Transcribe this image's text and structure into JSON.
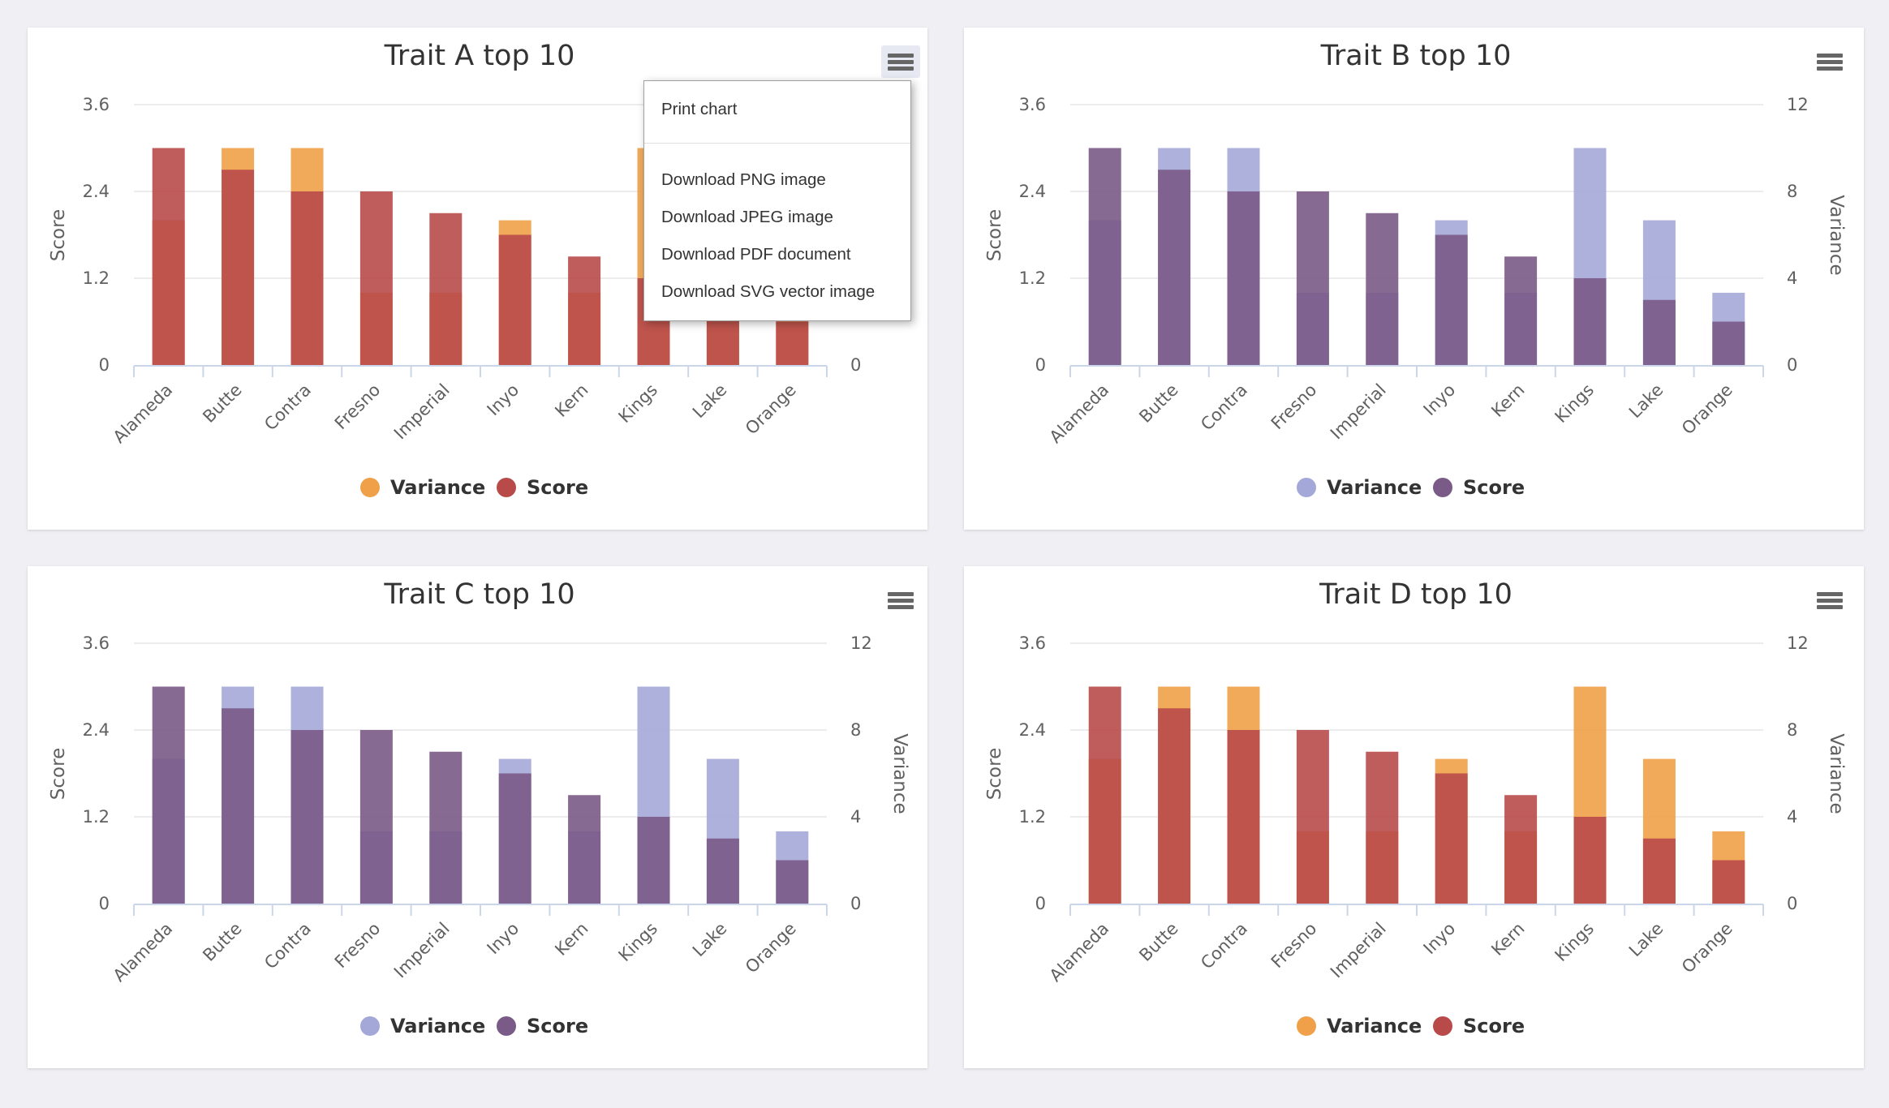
{
  "export_menu": {
    "items": [
      "Print chart",
      "Download PNG image",
      "Download JPEG image",
      "Download PDF document",
      "Download SVG vector image"
    ]
  },
  "chart_data": [
    {
      "type": "bar",
      "title": "Trait A top 10",
      "categories": [
        "Alameda",
        "Butte",
        "Contra",
        "Fresno",
        "Imperial",
        "Inyo",
        "Kern",
        "Kings",
        "Lake",
        "Orange"
      ],
      "ylabel": "Score",
      "y2label": "",
      "ylim": [
        0,
        3.6
      ],
      "y2lim": [
        0,
        12
      ],
      "yticks": [
        "0",
        "1.2",
        "2.4",
        "3.6"
      ],
      "y2ticks": [
        "0",
        "",
        "",
        ""
      ],
      "legend": "bottom-center",
      "grid": true,
      "series": [
        {
          "name": "Variance",
          "axis": "right",
          "color": "#f0a048",
          "values": [
            6.67,
            10,
            10,
            3.33,
            3.33,
            6.67,
            3.33,
            10,
            6.67,
            3.33
          ]
        },
        {
          "name": "Score",
          "axis": "left",
          "color": "#b84a4a",
          "values": [
            3.0,
            2.7,
            2.4,
            2.4,
            2.1,
            1.8,
            1.5,
            1.2,
            0.9,
            0.6
          ]
        }
      ]
    },
    {
      "type": "bar",
      "title": "Trait B top 10",
      "categories": [
        "Alameda",
        "Butte",
        "Contra",
        "Fresno",
        "Imperial",
        "Inyo",
        "Kern",
        "Kings",
        "Lake",
        "Orange"
      ],
      "ylabel": "Score",
      "y2label": "Variance",
      "ylim": [
        0,
        3.6
      ],
      "y2lim": [
        0,
        12
      ],
      "yticks": [
        "0",
        "1.2",
        "2.4",
        "3.6"
      ],
      "y2ticks": [
        "0",
        "4",
        "8",
        "12"
      ],
      "legend": "bottom-center",
      "grid": true,
      "series": [
        {
          "name": "Variance",
          "axis": "right",
          "color": "#a4a8d8",
          "values": [
            6.67,
            10,
            10,
            3.33,
            3.33,
            6.67,
            3.33,
            10,
            6.67,
            3.33
          ]
        },
        {
          "name": "Score",
          "axis": "left",
          "color": "#7a5a86",
          "values": [
            3.0,
            2.7,
            2.4,
            2.4,
            2.1,
            1.8,
            1.5,
            1.2,
            0.9,
            0.6
          ]
        }
      ]
    },
    {
      "type": "bar",
      "title": "Trait C top 10",
      "categories": [
        "Alameda",
        "Butte",
        "Contra",
        "Fresno",
        "Imperial",
        "Inyo",
        "Kern",
        "Kings",
        "Lake",
        "Orange"
      ],
      "ylabel": "Score",
      "y2label": "Variance",
      "ylim": [
        0,
        3.6
      ],
      "y2lim": [
        0,
        12
      ],
      "yticks": [
        "0",
        "1.2",
        "2.4",
        "3.6"
      ],
      "y2ticks": [
        "0",
        "4",
        "8",
        "12"
      ],
      "legend": "bottom-center",
      "grid": true,
      "series": [
        {
          "name": "Variance",
          "axis": "right",
          "color": "#a4a8d8",
          "values": [
            6.67,
            10,
            10,
            3.33,
            3.33,
            6.67,
            3.33,
            10,
            6.67,
            3.33
          ]
        },
        {
          "name": "Score",
          "axis": "left",
          "color": "#7a5a86",
          "values": [
            3.0,
            2.7,
            2.4,
            2.4,
            2.1,
            1.8,
            1.5,
            1.2,
            0.9,
            0.6
          ]
        }
      ]
    },
    {
      "type": "bar",
      "title": "Trait D top 10",
      "categories": [
        "Alameda",
        "Butte",
        "Contra",
        "Fresno",
        "Imperial",
        "Inyo",
        "Kern",
        "Kings",
        "Lake",
        "Orange"
      ],
      "ylabel": "Score",
      "y2label": "Variance",
      "ylim": [
        0,
        3.6
      ],
      "y2lim": [
        0,
        12
      ],
      "yticks": [
        "0",
        "1.2",
        "2.4",
        "3.6"
      ],
      "y2ticks": [
        "0",
        "4",
        "8",
        "12"
      ],
      "legend": "bottom-center",
      "grid": true,
      "series": [
        {
          "name": "Variance",
          "axis": "right",
          "color": "#f0a048",
          "values": [
            6.67,
            10,
            10,
            3.33,
            3.33,
            6.67,
            3.33,
            10,
            6.67,
            3.33
          ]
        },
        {
          "name": "Score",
          "axis": "left",
          "color": "#b84a4a",
          "values": [
            3.0,
            2.7,
            2.4,
            2.4,
            2.1,
            1.8,
            1.5,
            1.2,
            0.9,
            0.6
          ]
        }
      ]
    }
  ]
}
